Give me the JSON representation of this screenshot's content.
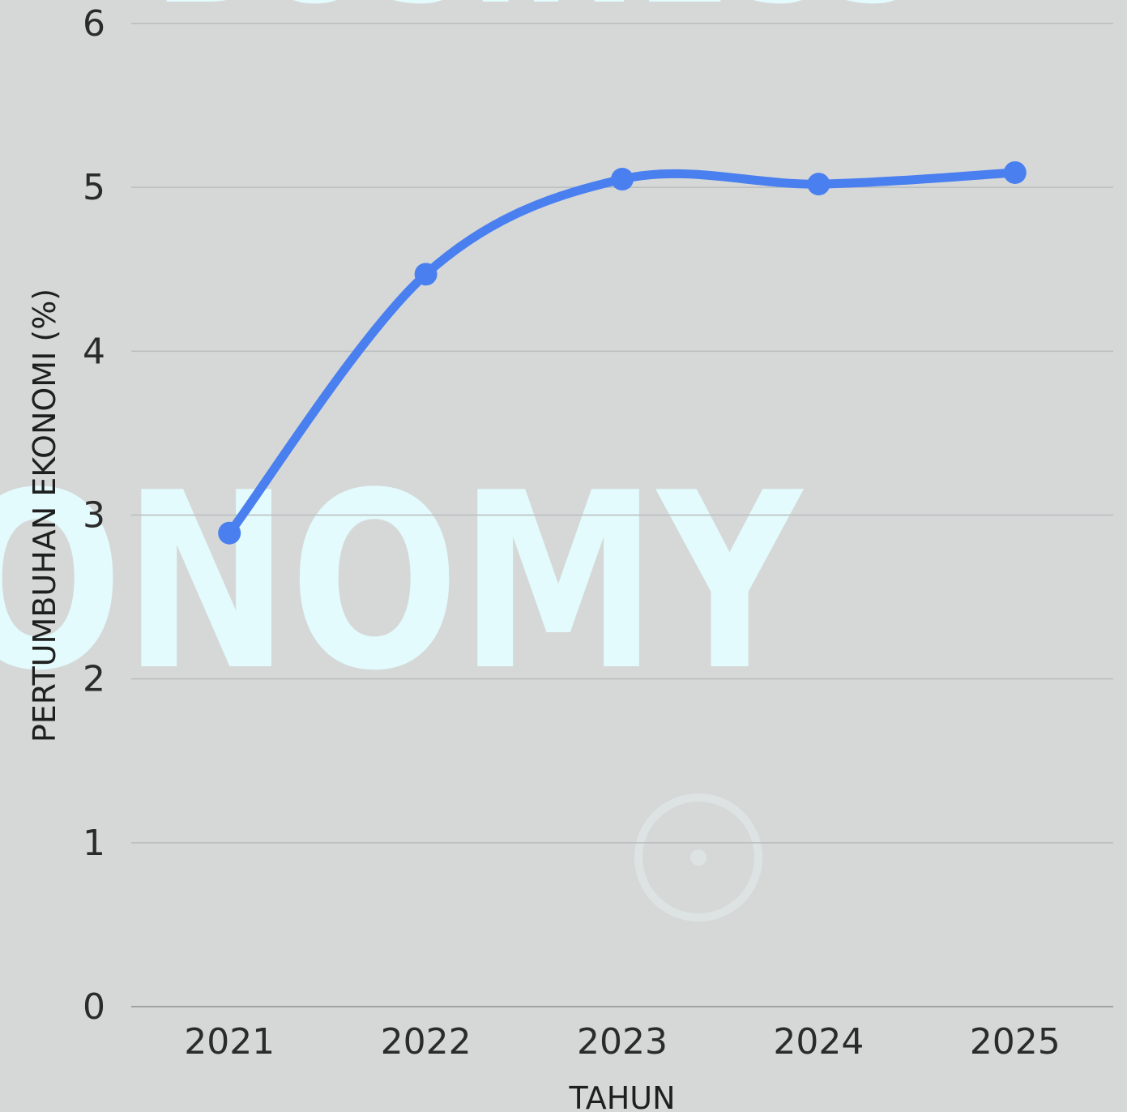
{
  "background": {
    "words": [
      "BUSINESS",
      "ONOMY"
    ],
    "color": "#d6d8d8",
    "word_color": "#e3fbfc"
  },
  "chart_data": {
    "type": "line",
    "title": "",
    "xlabel": "TAHUN",
    "ylabel": "PERTUMBUHAN EKONOMI (%)",
    "categories": [
      "2021",
      "2022",
      "2023",
      "2024",
      "2025"
    ],
    "series": [
      {
        "values": [
          2.89,
          4.47,
          5.05,
          5.02,
          5.09
        ]
      }
    ],
    "ylim": [
      0,
      6
    ],
    "yticks": [
      "0",
      "1",
      "2",
      "3",
      "4",
      "5",
      "6"
    ],
    "grid": true,
    "legend": "none",
    "line_color": "#4a7ff0"
  }
}
